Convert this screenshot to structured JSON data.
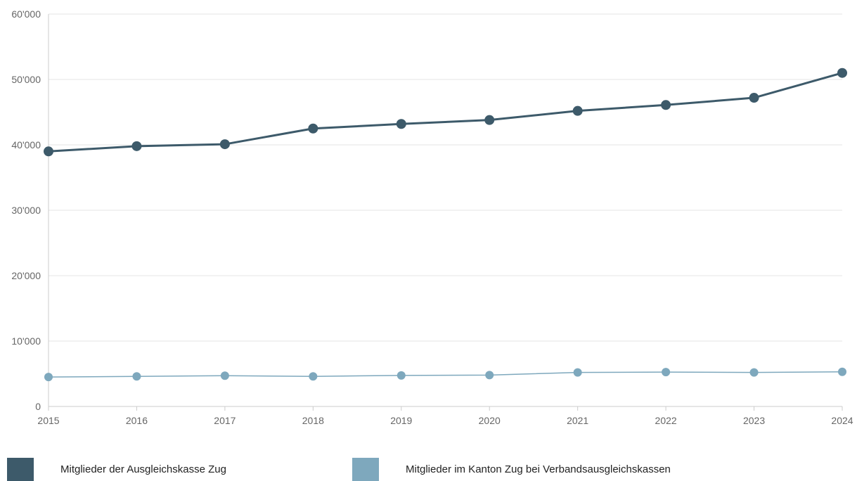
{
  "chart_data": {
    "type": "line",
    "categories": [
      "2015",
      "2016",
      "2017",
      "2018",
      "2019",
      "2020",
      "2021",
      "2022",
      "2023",
      "2024"
    ],
    "series": [
      {
        "name": "Mitglieder der Ausgleichskasse Zug",
        "color": "#3d5a6a",
        "values": [
          39000,
          39800,
          40100,
          42500,
          43200,
          43800,
          45200,
          46100,
          47200,
          51000
        ]
      },
      {
        "name": "Mitglieder im Kanton Zug bei Verbandsausgleichskassen",
        "color": "#7ea8bd",
        "values": [
          4500,
          4600,
          4700,
          4600,
          4750,
          4800,
          5200,
          5250,
          5200,
          5300
        ]
      }
    ],
    "ylim": [
      0,
      60000
    ],
    "yticks": [
      0,
      10000,
      20000,
      30000,
      40000,
      50000,
      60000
    ],
    "ytick_labels": [
      "0",
      "10'000",
      "20'000",
      "30'000",
      "40'000",
      "50'000",
      "60'000"
    ],
    "grid": true,
    "legend": "bottom"
  }
}
